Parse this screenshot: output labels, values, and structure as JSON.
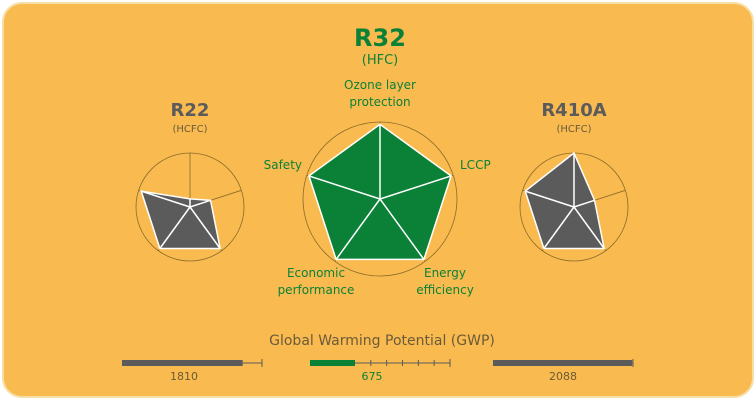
{
  "axes": [
    "Ozone layer protection",
    "LCCP",
    "Energy efficiency",
    "Economic performance",
    "Safety"
  ],
  "axis_labels": {
    "ozone": [
      "Ozone layer",
      "protection"
    ],
    "lccp": "LCCP",
    "energy": [
      "Energy",
      "efficiency"
    ],
    "economic": [
      "Economic",
      "performance"
    ],
    "safety": "Safety"
  },
  "refrigerants": [
    {
      "name": "R22",
      "type": "(HCFC)",
      "values": [
        0.15,
        0.4,
        0.95,
        0.95,
        0.95
      ],
      "gwp": "1810",
      "color": "#5b5b5b"
    },
    {
      "name": "R32",
      "type": "(HFC)",
      "values": [
        0.97,
        0.97,
        0.97,
        0.97,
        0.97
      ],
      "gwp": "675",
      "color": "#0b8137"
    },
    {
      "name": "R410A",
      "type": "(HCFC)",
      "values": [
        1.0,
        0.4,
        0.95,
        0.95,
        0.95
      ],
      "gwp": "2088",
      "color": "#5b5b5b"
    }
  ],
  "gwp_title": "Global Warming Potential (GWP)",
  "gwp_max": 2100,
  "colors": {
    "background": "#f9bb4f",
    "green": "#0b8137",
    "gray": "#5b5b5b",
    "label_gray": "#6b5a3a",
    "circle": "#8a6a2a"
  }
}
